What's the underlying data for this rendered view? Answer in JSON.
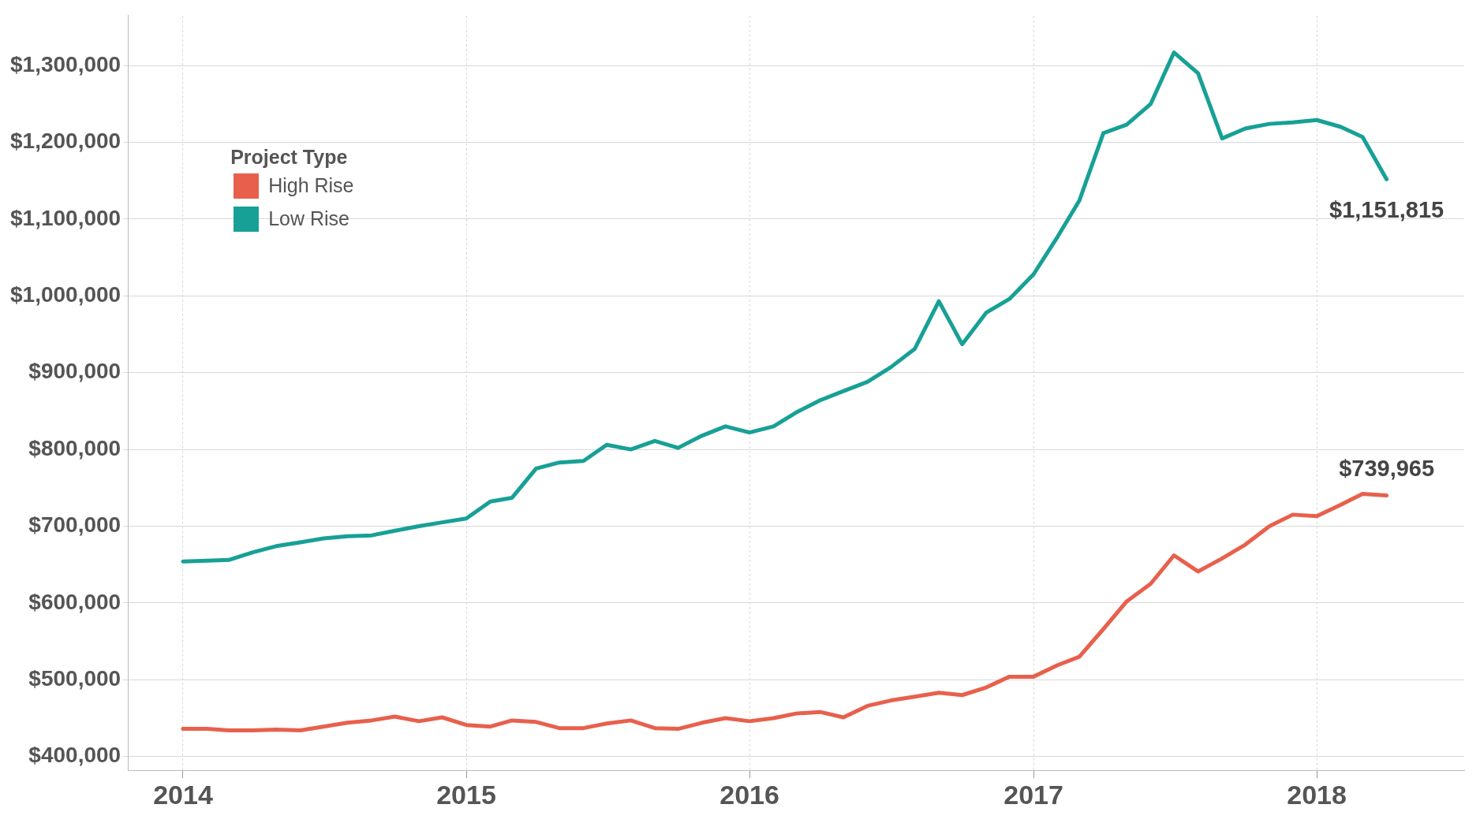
{
  "chart_data": {
    "type": "line",
    "legend_title": "Project Type",
    "x": [
      "2014-01",
      "2014-02",
      "2014-03",
      "2014-04",
      "2014-05",
      "2014-06",
      "2014-07",
      "2014-08",
      "2014-09",
      "2014-10",
      "2014-11",
      "2014-12",
      "2015-01",
      "2015-02",
      "2015-03",
      "2015-04",
      "2015-05",
      "2015-06",
      "2015-07",
      "2015-08",
      "2015-09",
      "2015-10",
      "2015-11",
      "2015-12",
      "2016-01",
      "2016-02",
      "2016-03",
      "2016-04",
      "2016-05",
      "2016-06",
      "2016-07",
      "2016-08",
      "2016-09",
      "2016-10",
      "2016-11",
      "2016-12",
      "2017-01",
      "2017-02",
      "2017-03",
      "2017-04",
      "2017-05",
      "2017-06",
      "2017-07",
      "2017-08",
      "2017-09",
      "2017-10",
      "2017-11",
      "2017-12",
      "2018-01",
      "2018-02",
      "2018-03",
      "2018-04"
    ],
    "series": [
      {
        "name": "High Rise",
        "color": "#e8604c",
        "values": [
          436000,
          436000,
          434000,
          434000,
          435000,
          434000,
          439000,
          444000,
          447000,
          452000,
          446000,
          451000,
          441000,
          439000,
          447000,
          445000,
          437000,
          437000,
          443000,
          447000,
          437000,
          436000,
          444000,
          450000,
          446000,
          450000,
          456000,
          458000,
          451000,
          466000,
          473000,
          478000,
          483000,
          480000,
          490000,
          504000,
          504000,
          519000,
          530000,
          566000,
          602000,
          625000,
          662000,
          641000,
          658000,
          676000,
          700000,
          715000,
          713000,
          728000,
          742000,
          739965
        ]
      },
      {
        "name": "Low Rise",
        "color": "#17a096",
        "values": [
          654000,
          655000,
          656000,
          666000,
          674000,
          679000,
          684000,
          687000,
          688000,
          694000,
          700000,
          705000,
          710000,
          732000,
          737000,
          775000,
          783000,
          785000,
          806000,
          800000,
          811000,
          802000,
          818000,
          830000,
          822000,
          830000,
          848000,
          864000,
          876000,
          888000,
          907000,
          931000,
          993000,
          937000,
          978000,
          996000,
          1028000,
          1077000,
          1124000,
          1212000,
          1223000,
          1250000,
          1317000,
          1290000,
          1205000,
          1218000,
          1224000,
          1226000,
          1229000,
          1220000,
          1207000,
          1151815
        ]
      }
    ],
    "xlim": [
      "2013-10-22",
      "2018-07-10"
    ],
    "xticks": [
      {
        "value": "2014",
        "label": "2014"
      },
      {
        "value": "2015",
        "label": "2015"
      },
      {
        "value": "2016",
        "label": "2016"
      },
      {
        "value": "2017",
        "label": "2017"
      },
      {
        "value": "2018",
        "label": "2018"
      }
    ],
    "ylim": [
      382000,
      1365000
    ],
    "yticks": [
      {
        "value": 400000,
        "label": "$400,000"
      },
      {
        "value": 500000,
        "label": "$500,000"
      },
      {
        "value": 600000,
        "label": "$600,000"
      },
      {
        "value": 700000,
        "label": "$700,000"
      },
      {
        "value": 800000,
        "label": "$800,000"
      },
      {
        "value": 900000,
        "label": "$900,000"
      },
      {
        "value": 1000000,
        "label": "$1,000,000"
      },
      {
        "value": 1100000,
        "label": "$1,100,000"
      },
      {
        "value": 1200000,
        "label": "$1,200,000"
      },
      {
        "value": 1300000,
        "label": "$1,300,000"
      }
    ],
    "annotations": [
      {
        "text": "$1,151,815",
        "x": "2018-04",
        "y": 1151815
      },
      {
        "text": "$739,965",
        "x": "2018-04",
        "y": 739965
      }
    ],
    "grid": true,
    "legend": "top left",
    "marker": "none",
    "line_style": "solid"
  }
}
